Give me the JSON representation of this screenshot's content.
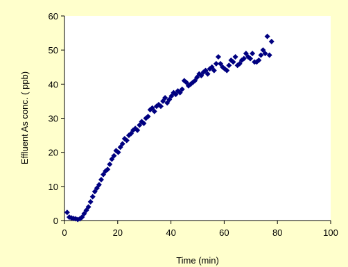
{
  "chart_data": {
    "type": "scatter",
    "title": "",
    "xlabel": "Time (min)",
    "ylabel": "Effluent As conc. ( ppb)",
    "xlim": [
      0,
      100
    ],
    "ylim": [
      0,
      60
    ],
    "x_ticks": [
      0,
      20,
      40,
      60,
      80,
      100
    ],
    "y_ticks": [
      0,
      10,
      20,
      30,
      40,
      50,
      60
    ],
    "grid": false,
    "legend": "none",
    "colors": {
      "background": "#FFFFCC",
      "plot_area": "#FFFFFF",
      "marker": "#000080"
    },
    "marker": "diamond",
    "points": [
      [
        1.0,
        2.4
      ],
      [
        1.8,
        1.0
      ],
      [
        2.6,
        0.8
      ],
      [
        3.4,
        0.6
      ],
      [
        4.2,
        0.5
      ],
      [
        5.0,
        0.3
      ],
      [
        5.8,
        0.5
      ],
      [
        6.6,
        1.0
      ],
      [
        7.4,
        2.0
      ],
      [
        8.2,
        3.0
      ],
      [
        9.0,
        4.0
      ],
      [
        9.8,
        5.5
      ],
      [
        10.6,
        7.0
      ],
      [
        11.4,
        8.5
      ],
      [
        12.2,
        9.5
      ],
      [
        13.0,
        10.5
      ],
      [
        13.8,
        12.0
      ],
      [
        14.6,
        13.5
      ],
      [
        15.4,
        14.5
      ],
      [
        16.2,
        15.0
      ],
      [
        17.0,
        16.5
      ],
      [
        17.8,
        18.0
      ],
      [
        18.6,
        19.0
      ],
      [
        19.4,
        20.5
      ],
      [
        20.2,
        20.0
      ],
      [
        21.0,
        21.5
      ],
      [
        21.8,
        22.5
      ],
      [
        22.6,
        24.0
      ],
      [
        23.4,
        23.5
      ],
      [
        24.2,
        25.0
      ],
      [
        25.0,
        25.5
      ],
      [
        25.8,
        26.5
      ],
      [
        26.6,
        27.0
      ],
      [
        27.4,
        26.5
      ],
      [
        28.2,
        28.0
      ],
      [
        29.0,
        29.0
      ],
      [
        29.8,
        28.5
      ],
      [
        30.6,
        30.0
      ],
      [
        31.4,
        30.5
      ],
      [
        32.2,
        32.5
      ],
      [
        33.0,
        33.0
      ],
      [
        33.8,
        32.0
      ],
      [
        34.6,
        33.5
      ],
      [
        35.4,
        34.0
      ],
      [
        36.2,
        33.5
      ],
      [
        37.0,
        35.0
      ],
      [
        37.8,
        36.0
      ],
      [
        38.6,
        34.5
      ],
      [
        39.4,
        35.5
      ],
      [
        40.2,
        36.5
      ],
      [
        41.0,
        37.5
      ],
      [
        41.8,
        37.0
      ],
      [
        42.6,
        38.0
      ],
      [
        43.4,
        37.5
      ],
      [
        44.2,
        38.5
      ],
      [
        45.0,
        41.0
      ],
      [
        45.8,
        40.5
      ],
      [
        46.6,
        39.5
      ],
      [
        47.4,
        40.0
      ],
      [
        48.2,
        40.5
      ],
      [
        49.0,
        41.0
      ],
      [
        49.8,
        42.0
      ],
      [
        50.6,
        43.0
      ],
      [
        51.4,
        42.5
      ],
      [
        52.2,
        43.5
      ],
      [
        53.0,
        44.0
      ],
      [
        53.8,
        43.0
      ],
      [
        54.6,
        44.5
      ],
      [
        55.4,
        45.0
      ],
      [
        56.2,
        44.0
      ],
      [
        57.0,
        46.0
      ],
      [
        57.8,
        48.0
      ],
      [
        58.6,
        46.0
      ],
      [
        59.4,
        45.0
      ],
      [
        60.2,
        44.5
      ],
      [
        61.0,
        44.0
      ],
      [
        61.8,
        45.5
      ],
      [
        62.6,
        47.0
      ],
      [
        63.4,
        46.5
      ],
      [
        64.2,
        48.0
      ],
      [
        65.0,
        45.5
      ],
      [
        65.8,
        46.0
      ],
      [
        66.6,
        47.0
      ],
      [
        67.4,
        47.5
      ],
      [
        68.2,
        49.0
      ],
      [
        69.0,
        48.0
      ],
      [
        69.8,
        47.5
      ],
      [
        70.6,
        49.0
      ],
      [
        71.4,
        46.5
      ],
      [
        72.2,
        46.5
      ],
      [
        73.0,
        47.0
      ],
      [
        73.8,
        48.5
      ],
      [
        74.6,
        50.0
      ],
      [
        75.4,
        49.0
      ],
      [
        76.2,
        54.0
      ],
      [
        77.0,
        48.5
      ],
      [
        77.8,
        52.5
      ]
    ]
  }
}
